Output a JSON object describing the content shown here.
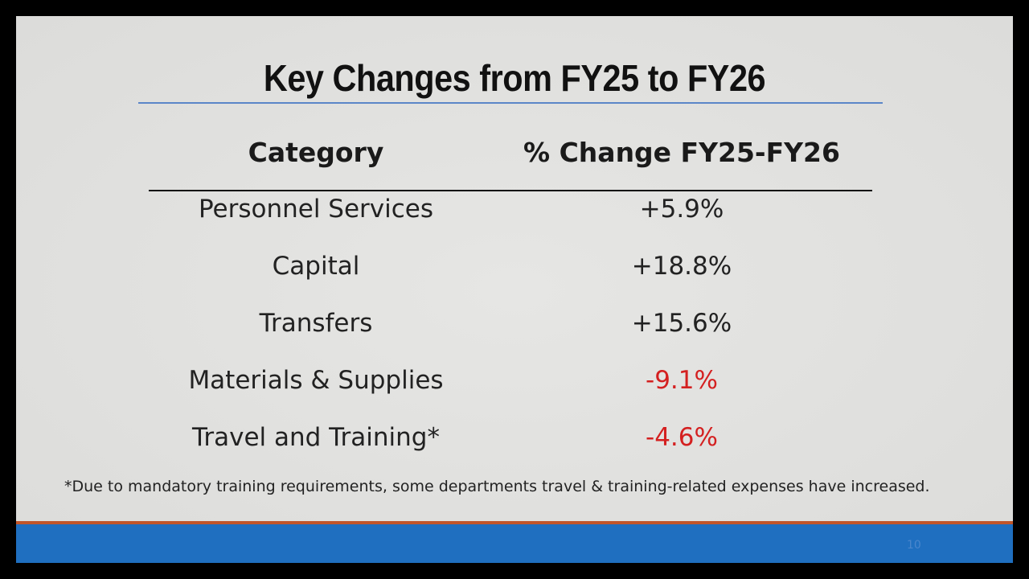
{
  "slide": {
    "title": "Key Changes from FY25 to FY26",
    "table": {
      "header": [
        "Category",
        "% Change FY25-FY26"
      ],
      "rows": [
        [
          "Personnel Services",
          "+5.9%"
        ],
        [
          "Capital",
          "+18.8%"
        ],
        [
          "Transfers",
          "+15.6%"
        ],
        [
          "Materials & Supplies",
          "-9.1%"
        ],
        [
          "Travel and Training*",
          "-4.6%"
        ]
      ]
    },
    "footnote": "*Due to mandatory training requirements, some departments travel & training-related expenses have increased.",
    "page_number": "10"
  }
}
